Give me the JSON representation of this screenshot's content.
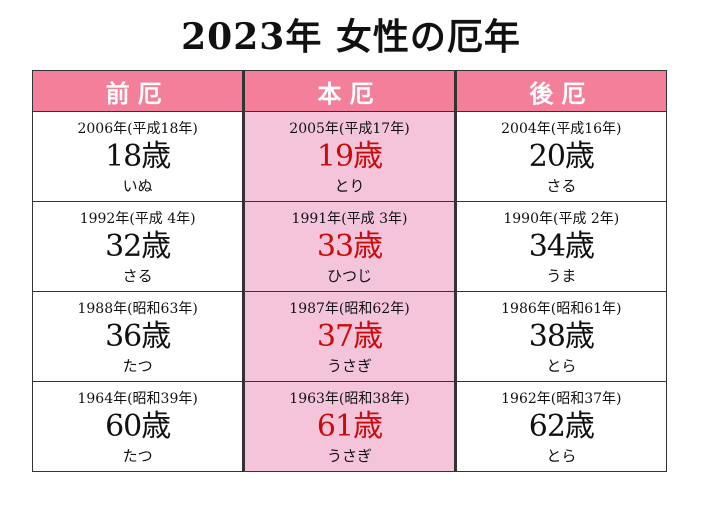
{
  "title": "2023年 女性の厄年",
  "columns": [
    "前厄",
    "本厄",
    "後厄"
  ],
  "rows": [
    [
      {
        "year": "2006年(平成18年)",
        "age": "18歳",
        "eto": "いぬ"
      },
      {
        "year": "2005年(平成17年)",
        "age": "19歳",
        "eto": "とり"
      },
      {
        "year": "2004年(平成16年)",
        "age": "20歳",
        "eto": "さる"
      }
    ],
    [
      {
        "year": "1992年(平成 4年)",
        "age": "32歳",
        "eto": "さる"
      },
      {
        "year": "1991年(平成 3年)",
        "age": "33歳",
        "eto": "ひつじ"
      },
      {
        "year": "1990年(平成 2年)",
        "age": "34歳",
        "eto": "うま"
      }
    ],
    [
      {
        "year": "1988年(昭和63年)",
        "age": "36歳",
        "eto": "たつ"
      },
      {
        "year": "1987年(昭和62年)",
        "age": "37歳",
        "eto": "うさぎ"
      },
      {
        "year": "1986年(昭和61年)",
        "age": "38歳",
        "eto": "とら"
      }
    ],
    [
      {
        "year": "1964年(昭和39年)",
        "age": "60歳",
        "eto": "たつ"
      },
      {
        "year": "1963年(昭和38年)",
        "age": "61歳",
        "eto": "うさぎ"
      },
      {
        "year": "1962年(昭和37年)",
        "age": "62歳",
        "eto": "とら"
      }
    ]
  ],
  "colors": {
    "header_bg": "#f37f9a",
    "honyaku_bg": "#f4c4da",
    "honyaku_age": "#cc0a0a"
  }
}
